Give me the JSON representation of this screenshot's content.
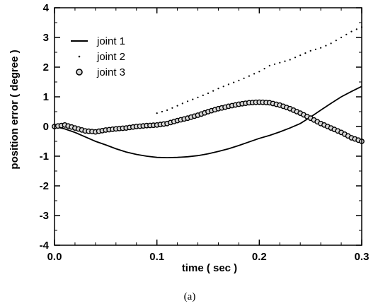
{
  "chart_data": {
    "type": "line",
    "xlabel": "time ( sec )",
    "ylabel": "position error ( degree )",
    "xlim": [
      0.0,
      0.3
    ],
    "ylim": [
      -4,
      4
    ],
    "xticks": [
      "0.0",
      "0.1",
      "0.2",
      "0.3"
    ],
    "yticks": [
      "-4",
      "-3",
      "-2",
      "-1",
      "0",
      "1",
      "2",
      "3",
      "4"
    ],
    "x_minor_step": 0.02,
    "y_minor_step": 0.5,
    "grid": false,
    "legend_position": "top-left",
    "caption": "(a)",
    "series": [
      {
        "name": "joint 1",
        "style": "solid-line",
        "x": [
          0.0,
          0.01,
          0.02,
          0.03,
          0.04,
          0.05,
          0.06,
          0.07,
          0.08,
          0.09,
          0.1,
          0.11,
          0.12,
          0.13,
          0.14,
          0.15,
          0.16,
          0.17,
          0.18,
          0.19,
          0.2,
          0.21,
          0.22,
          0.23,
          0.24,
          0.25,
          0.26,
          0.27,
          0.28,
          0.29,
          0.3
        ],
        "y": [
          0.0,
          -0.08,
          -0.2,
          -0.35,
          -0.5,
          -0.62,
          -0.75,
          -0.86,
          -0.94,
          -1.0,
          -1.04,
          -1.05,
          -1.04,
          -1.02,
          -0.98,
          -0.92,
          -0.84,
          -0.75,
          -0.64,
          -0.52,
          -0.4,
          -0.3,
          -0.18,
          -0.05,
          0.1,
          0.32,
          0.55,
          0.78,
          1.0,
          1.18,
          1.35
        ]
      },
      {
        "name": "joint 2",
        "style": "dotted",
        "x": [
          0.1,
          0.11,
          0.12,
          0.13,
          0.14,
          0.15,
          0.16,
          0.17,
          0.18,
          0.19,
          0.2,
          0.21,
          0.22,
          0.23,
          0.24,
          0.25,
          0.26,
          0.27,
          0.28,
          0.29,
          0.3
        ],
        "y": [
          0.45,
          0.55,
          0.7,
          0.85,
          0.98,
          1.12,
          1.28,
          1.42,
          1.55,
          1.7,
          1.85,
          2.05,
          2.15,
          2.25,
          2.4,
          2.55,
          2.65,
          2.8,
          3.0,
          3.2,
          3.35
        ]
      },
      {
        "name": "joint 3",
        "style": "line-with-circle-markers",
        "x": [
          0.0,
          0.01,
          0.02,
          0.03,
          0.04,
          0.05,
          0.06,
          0.07,
          0.08,
          0.09,
          0.1,
          0.11,
          0.12,
          0.13,
          0.14,
          0.15,
          0.16,
          0.17,
          0.18,
          0.19,
          0.2,
          0.21,
          0.22,
          0.23,
          0.24,
          0.25,
          0.26,
          0.27,
          0.28,
          0.29,
          0.3
        ],
        "y": [
          0.0,
          0.05,
          -0.05,
          -0.15,
          -0.18,
          -0.12,
          -0.08,
          -0.05,
          0.0,
          0.03,
          0.05,
          0.1,
          0.2,
          0.28,
          0.38,
          0.5,
          0.6,
          0.68,
          0.75,
          0.8,
          0.82,
          0.8,
          0.72,
          0.6,
          0.45,
          0.28,
          0.1,
          -0.05,
          -0.2,
          -0.38,
          -0.5
        ]
      }
    ]
  }
}
